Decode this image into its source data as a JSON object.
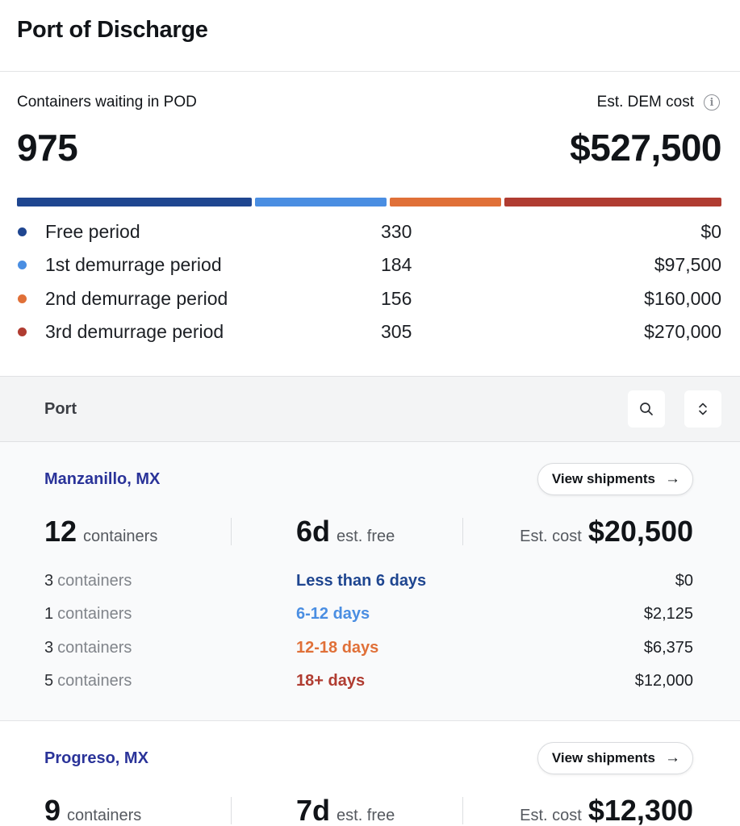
{
  "header": {
    "title": "Port of Discharge"
  },
  "summary": {
    "containers_label": "Containers waiting in POD",
    "containers_total": "975",
    "dem_label": "Est. DEM cost",
    "info_icon": "info-icon",
    "dem_total": "$527,500",
    "legend": [
      {
        "name": "Free period",
        "count": "330",
        "cost": "$0",
        "color": "#1f4690",
        "share": 330
      },
      {
        "name": "1st demurrage period",
        "count": "184",
        "cost": "$97,500",
        "color": "#4a8ee2",
        "share": 184
      },
      {
        "name": "2nd demurrage period",
        "count": "156",
        "cost": "$160,000",
        "color": "#e07038",
        "share": 156
      },
      {
        "name": "3rd demurrage period",
        "count": "305",
        "cost": "$270,000",
        "color": "#b03c31",
        "share": 305
      }
    ]
  },
  "table": {
    "column_label": "Port",
    "search_icon": "search-icon",
    "sort_icon": "sort-icon"
  },
  "ports": [
    {
      "name": "Manzanillo, MX",
      "view_label": "View shipments",
      "containers": "12",
      "containers_unit": "containers",
      "free_days": "6d",
      "free_label": "est. free",
      "cost_label": "Est. cost",
      "cost": "$20,500",
      "rows": [
        {
          "count": "3",
          "unit": "containers",
          "range": "Less than 6 days",
          "color": "#1f4690",
          "cost": "$0"
        },
        {
          "count": "1",
          "unit": "containers",
          "range": "6-12 days",
          "color": "#4a8ee2",
          "cost": "$2,125"
        },
        {
          "count": "3",
          "unit": "containers",
          "range": "12-18 days",
          "color": "#e07038",
          "cost": "$6,375"
        },
        {
          "count": "5",
          "unit": "containers",
          "range": "18+ days",
          "color": "#b03c31",
          "cost": "$12,000"
        }
      ]
    },
    {
      "name": "Progreso, MX",
      "view_label": "View shipments",
      "containers": "9",
      "containers_unit": "containers",
      "free_days": "7d",
      "free_label": "est. free",
      "cost_label": "Est. cost",
      "cost": "$12,300"
    }
  ]
}
